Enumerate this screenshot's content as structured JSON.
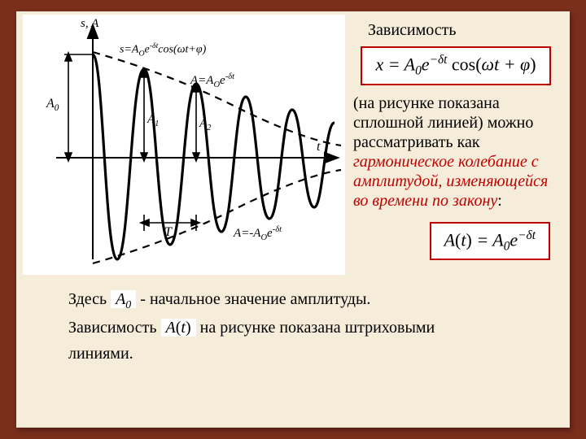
{
  "rightCol": {
    "heading": "Зависимость",
    "mainFormula": "x = A<sub>0</sub>e<sup>&minus;&delta;t</sup>&nbsp;<span class='upright'>cos(</span>&omega;t + &phi;<span class='upright'>)</span>",
    "paragraphPlain": "(на рисунке показана сплошной линией) можно рассматривать как ",
    "paragraphEmph": "гармоническое колебание с амплитудой, изменяющейся во времени по закону",
    "amplitudeFormula": "A<span class='upright'>(</span>t<span class='upright'>)</span> = A<sub>0</sub>e<sup>&minus;&delta;t</sup>"
  },
  "bottom": {
    "line1a": "Здесь ",
    "symA0": "A<sub>0</sub>",
    "line1b": " - начальное значение амплитуды.",
    "line2a": "Зависимость ",
    "symAt": "A<span class='upright'>(</span>t<span class='upright'>)</span>",
    "line2b": " на рисунке показана штриховыми",
    "line3": "линиями."
  },
  "graph": {
    "axis_label_top": "s, A",
    "label_s": "s=A<sub>O</sub>e<sup>-&delta;t</sup>cos(&omega;t+&phi;)",
    "label_envTop": "A=A<sub>O</sub>e<sup>-&delta;t</sup>",
    "label_envBot": "A=-A<sub>O</sub>e<sup>-&delta;t</sup>",
    "label_A0": "A<sub>0</sub>",
    "label_A1": "A<sub>1</sub>",
    "label_A2": "A<sub>2</sub>",
    "label_T": "T",
    "label_t": "t",
    "colors": {
      "axis": "#000000",
      "curve": "#000000",
      "envelope": "#000000",
      "bg": "#ffffff"
    }
  }
}
